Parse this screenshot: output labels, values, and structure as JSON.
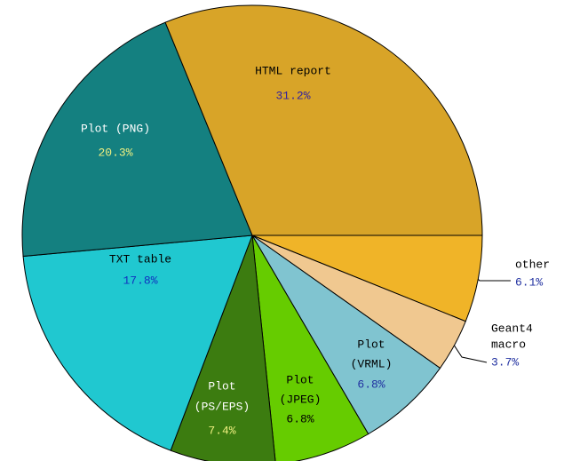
{
  "chart_data": {
    "type": "pie",
    "categories": [
      [
        "other"
      ],
      [
        "Geant4",
        "macro"
      ],
      [
        "Plot",
        "(VRML)"
      ],
      [
        "Plot",
        "(JPEG)"
      ],
      [
        "Plot",
        "(PS/EPS)"
      ],
      [
        "TXT table"
      ],
      [
        "Plot (PNG)"
      ],
      [
        "HTML report"
      ]
    ],
    "values": [
      6.1,
      3.7,
      6.8,
      6.8,
      7.4,
      17.8,
      20.3,
      31.2
    ],
    "value_labels": [
      "6.1%",
      "3.7%",
      "6.8%",
      "6.8%",
      "7.4%",
      "17.8%",
      "20.3%",
      "31.2%"
    ],
    "colors": [
      "#f0b428",
      "#f0c890",
      "#80c4d0",
      "#66cc00",
      "#3c7c10",
      "#20c8d0",
      "#148080",
      "#d8a428"
    ]
  }
}
